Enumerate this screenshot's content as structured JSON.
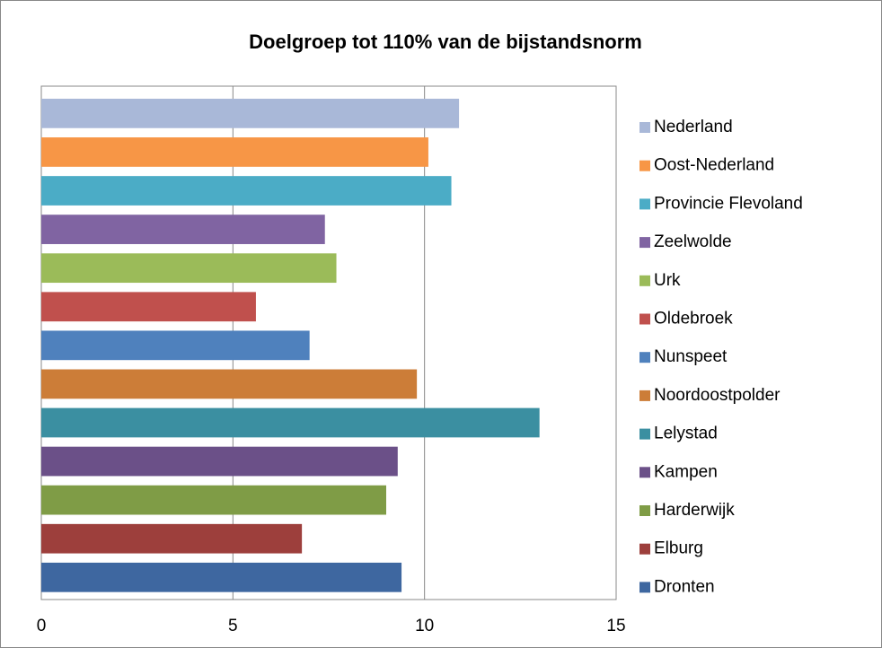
{
  "chart_data": {
    "type": "bar",
    "orientation": "horizontal",
    "title": "Doelgroep tot 110% van de bijstandsnorm",
    "series": [
      {
        "name": "Nederland",
        "color": "#a9b8d8",
        "values": [
          10.9
        ]
      },
      {
        "name": "Oost-Nederland",
        "color": "#f79646",
        "values": [
          10.1
        ]
      },
      {
        "name": "Provincie Flevoland",
        "color": "#4bacc6",
        "values": [
          10.7
        ]
      },
      {
        "name": "Zeelwolde",
        "color": "#8064a2",
        "values": [
          7.4
        ]
      },
      {
        "name": "Urk",
        "color": "#9bbb59",
        "values": [
          7.7
        ]
      },
      {
        "name": "Oldebroek",
        "color": "#c0504d",
        "values": [
          5.6
        ]
      },
      {
        "name": "Nunspeet",
        "color": "#4f81bd",
        "values": [
          7.0
        ]
      },
      {
        "name": "Noordoostpolder",
        "color": "#cc7d38",
        "values": [
          9.8
        ]
      },
      {
        "name": "Lelystad",
        "color": "#3b8fa1",
        "values": [
          13.0
        ]
      },
      {
        "name": "Kampen",
        "color": "#6b5088",
        "values": [
          9.3
        ]
      },
      {
        "name": "Harderwijk",
        "color": "#7f9c46",
        "values": [
          9.0
        ]
      },
      {
        "name": "Elburg",
        "color": "#9d3f3c",
        "values": [
          6.8
        ]
      },
      {
        "name": "Dronten",
        "color": "#3e67a0",
        "values": [
          9.4
        ]
      }
    ],
    "xlim": [
      0,
      15
    ],
    "xticks": [
      0,
      5,
      10,
      15
    ],
    "grid": true,
    "legend": "right"
  }
}
